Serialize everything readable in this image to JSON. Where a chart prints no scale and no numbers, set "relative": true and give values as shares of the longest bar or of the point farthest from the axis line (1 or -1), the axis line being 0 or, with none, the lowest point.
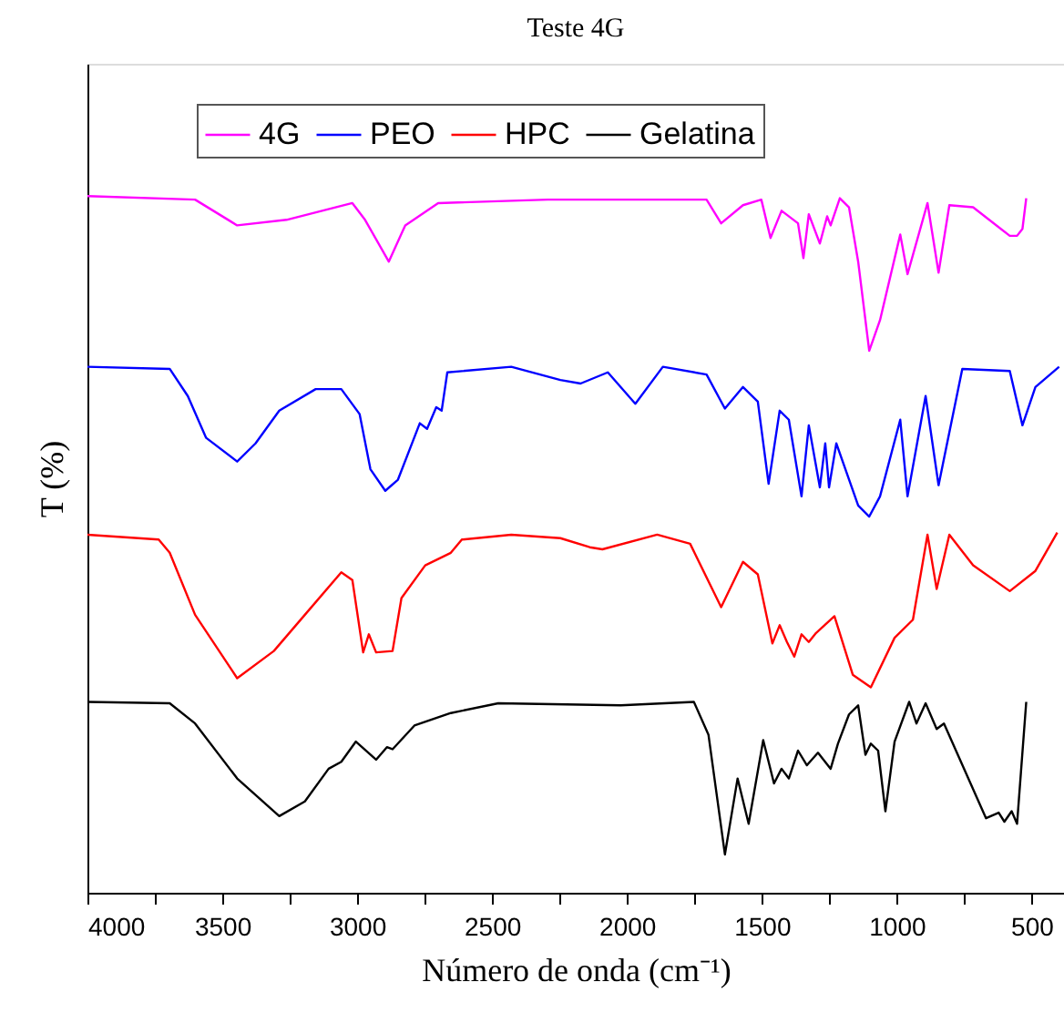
{
  "chart_data": {
    "type": "line",
    "title": "Teste 4G",
    "xlabel": "Número de onda (cm⁻¹)",
    "ylabel": "T (%)",
    "relative": true,
    "legend": "top",
    "xlim": [
      4000,
      380
    ],
    "xticks": [
      4000,
      {
        "value": 3750,
        "label": null
      },
      3500,
      {
        "value": 3250,
        "label": null
      },
      3000,
      {
        "value": 2750,
        "label": null
      },
      2500,
      {
        "value": 2250,
        "label": null
      },
      2000,
      {
        "value": 1750,
        "label": null
      },
      1500,
      {
        "value": 1250,
        "label": null
      },
      1000,
      {
        "value": 750,
        "label": null
      },
      500
    ],
    "series": [
      {
        "name": "4G",
        "color": "#ff00ff",
        "x": [
          4000,
          3601,
          3445,
          3262,
          3018,
          2971,
          2883,
          2822,
          2700,
          2294,
          1705,
          1651,
          1570,
          1502,
          1468,
          1427,
          1366,
          1346,
          1326,
          1285,
          1258,
          1245,
          1211,
          1177,
          1143,
          1102,
          1062,
          987,
          960,
          886,
          845,
          805,
          717,
          581,
          554,
          534,
          520
        ],
        "values": [
          1.0,
          0.995,
          0.958,
          0.966,
          0.99,
          0.966,
          0.906,
          0.958,
          0.99,
          0.995,
          0.995,
          0.961,
          0.987,
          0.995,
          0.94,
          0.979,
          0.961,
          0.911,
          0.974,
          0.932,
          0.971,
          0.958,
          0.997,
          0.984,
          0.906,
          0.778,
          0.822,
          0.945,
          0.888,
          0.99,
          0.89,
          0.987,
          0.984,
          0.943,
          0.943,
          0.953,
          0.997
        ]
      },
      {
        "name": "PEO",
        "color": "#0000ff",
        "x": [
          4000,
          3695,
          3628,
          3560,
          3445,
          3377,
          3289,
          3154,
          3059,
          2991,
          2951,
          2896,
          2849,
          2768,
          2741,
          2707,
          2687,
          2666,
          2429,
          2247,
          2172,
          2071,
          1969,
          1867,
          1705,
          1637,
          1570,
          1515,
          1475,
          1434,
          1400,
          1353,
          1326,
          1285,
          1265,
          1251,
          1224,
          1143,
          1102,
          1062,
          987,
          960,
          893,
          845,
          757,
          581,
          534,
          486,
          398
        ],
        "values": [
          0.755,
          0.752,
          0.713,
          0.653,
          0.619,
          0.645,
          0.692,
          0.723,
          0.723,
          0.687,
          0.608,
          0.577,
          0.593,
          0.674,
          0.666,
          0.697,
          0.692,
          0.747,
          0.755,
          0.736,
          0.731,
          0.747,
          0.702,
          0.755,
          0.744,
          0.695,
          0.726,
          0.705,
          0.587,
          0.692,
          0.679,
          0.569,
          0.671,
          0.582,
          0.645,
          0.582,
          0.645,
          0.556,
          0.54,
          0.569,
          0.679,
          0.569,
          0.713,
          0.585,
          0.752,
          0.749,
          0.671,
          0.726,
          0.755
        ]
      },
      {
        "name": "HPC",
        "color": "#ff0000",
        "x": [
          4000,
          3736,
          3695,
          3601,
          3445,
          3309,
          3194,
          3059,
          3018,
          2978,
          2957,
          2930,
          2869,
          2836,
          2748,
          2653,
          2612,
          2429,
          2247,
          2138,
          2091,
          1888,
          1766,
          1651,
          1570,
          1515,
          1461,
          1434,
          1407,
          1380,
          1353,
          1326,
          1299,
          1231,
          1163,
          1096,
          1008,
          940,
          886,
          852,
          805,
          717,
          581,
          486,
          405
        ],
        "values": [
          0.514,
          0.507,
          0.488,
          0.399,
          0.308,
          0.347,
          0.399,
          0.46,
          0.449,
          0.345,
          0.371,
          0.345,
          0.347,
          0.423,
          0.47,
          0.488,
          0.507,
          0.514,
          0.509,
          0.496,
          0.493,
          0.514,
          0.501,
          0.41,
          0.475,
          0.457,
          0.358,
          0.384,
          0.36,
          0.339,
          0.371,
          0.36,
          0.373,
          0.397,
          0.313,
          0.295,
          0.366,
          0.392,
          0.514,
          0.436,
          0.514,
          0.47,
          0.433,
          0.462,
          0.517
        ]
      },
      {
        "name": "Gelatina",
        "color": "#000000",
        "x": [
          4000,
          3695,
          3601,
          3445,
          3289,
          3194,
          3106,
          3059,
          3005,
          2930,
          2890,
          2869,
          2788,
          2653,
          2477,
          2023,
          1752,
          1698,
          1637,
          1590,
          1549,
          1495,
          1455,
          1427,
          1400,
          1366,
          1333,
          1292,
          1245,
          1218,
          1177,
          1143,
          1116,
          1096,
          1069,
          1042,
          1008,
          954,
          927,
          893,
          852,
          825,
          669,
          622,
          601,
          574,
          554,
          520
        ],
        "values": [
          0.274,
          0.272,
          0.243,
          0.164,
          0.11,
          0.131,
          0.178,
          0.188,
          0.217,
          0.191,
          0.209,
          0.206,
          0.24,
          0.258,
          0.272,
          0.269,
          0.274,
          0.227,
          0.055,
          0.164,
          0.099,
          0.219,
          0.157,
          0.178,
          0.164,
          0.204,
          0.183,
          0.201,
          0.178,
          0.214,
          0.256,
          0.269,
          0.198,
          0.214,
          0.204,
          0.117,
          0.217,
          0.274,
          0.243,
          0.272,
          0.235,
          0.243,
          0.107,
          0.115,
          0.102,
          0.117,
          0.099,
          0.274
        ]
      }
    ]
  }
}
